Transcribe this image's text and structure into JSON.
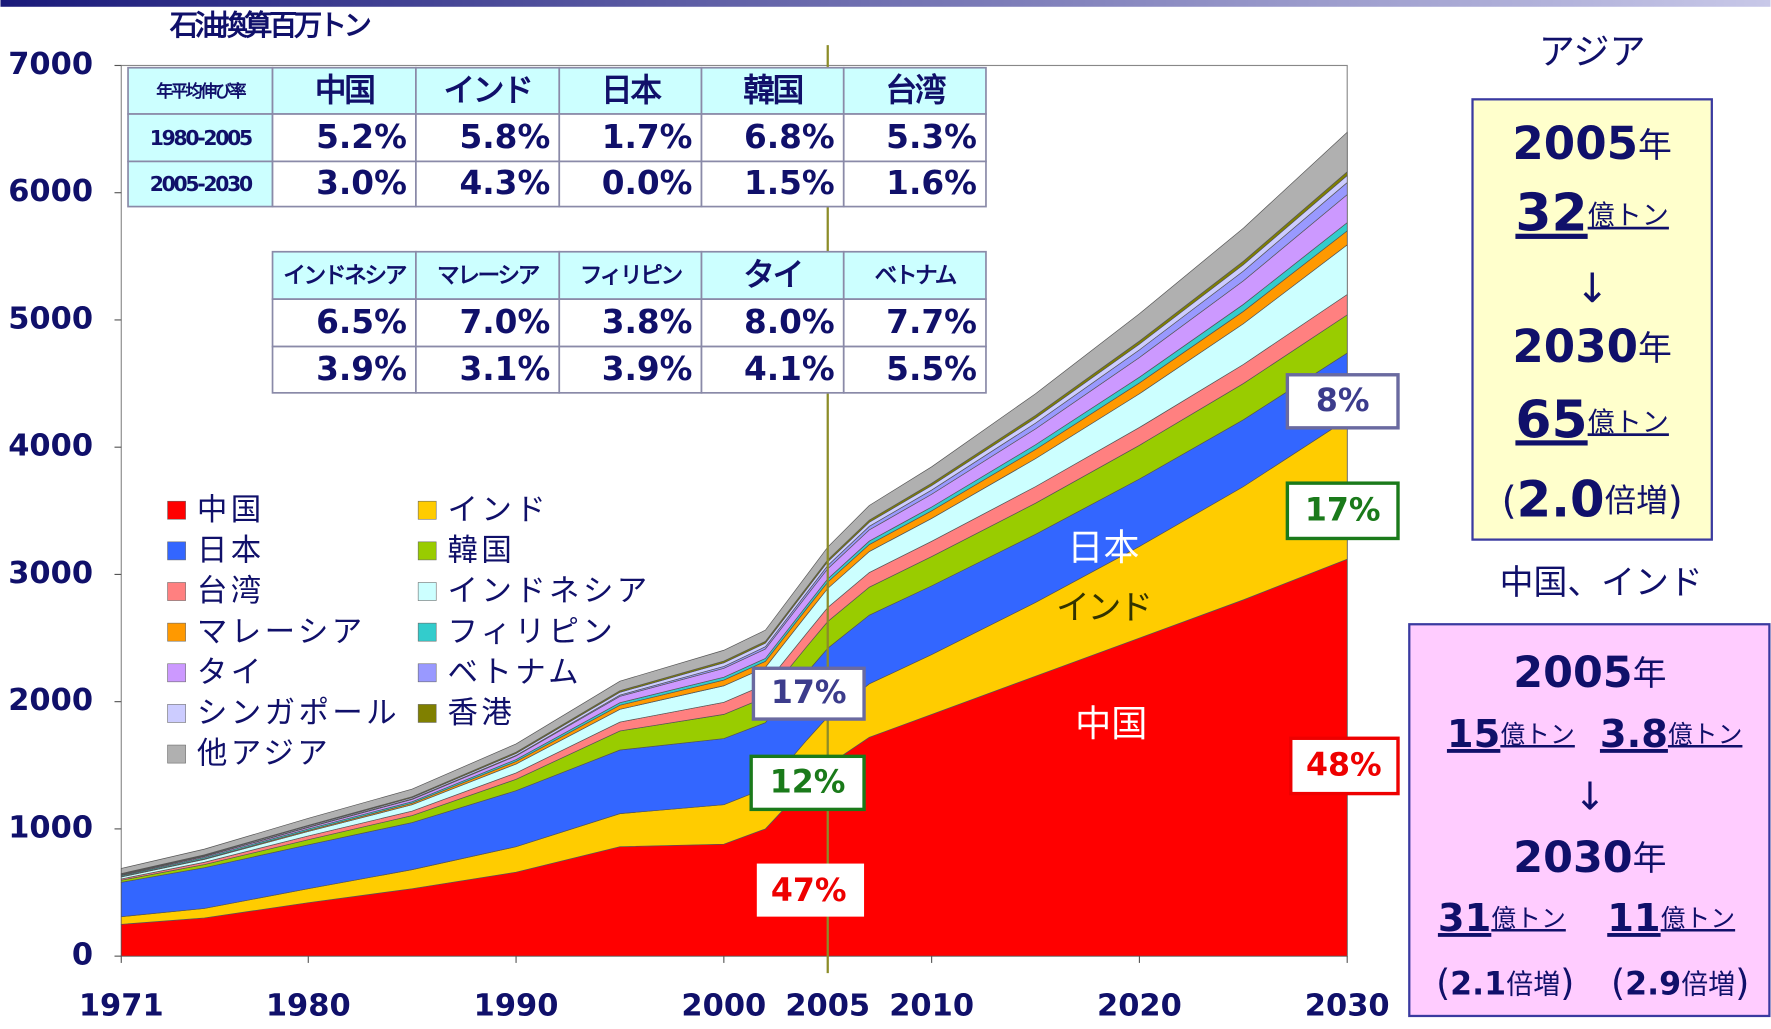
{
  "chart_data": {
    "type": "stacked_area",
    "ylabel": "石油換算百万トン",
    "x": [
      1971,
      1975,
      1980,
      1985,
      1990,
      1995,
      2000,
      2002,
      2004,
      2005,
      2007,
      2010,
      2015,
      2020,
      2025,
      2030
    ],
    "xlim": [
      1971,
      2030
    ],
    "xticks": [
      1971,
      1980,
      1990,
      2000,
      2005,
      2010,
      2020,
      2030
    ],
    "ylim": [
      0,
      7000
    ],
    "yticks": [
      0,
      1000,
      2000,
      3000,
      4000,
      5000,
      6000,
      7000
    ],
    "vline": 2005,
    "series": [
      {
        "name": "中国",
        "color": "#ff0000",
        "values": [
          250,
          300,
          420,
          530,
          660,
          860,
          880,
          1000,
          1350,
          1500,
          1720,
          1900,
          2200,
          2500,
          2800,
          3120
        ]
      },
      {
        "name": "インド",
        "color": "#ffcc00",
        "values": [
          60,
          75,
          110,
          150,
          200,
          260,
          310,
          320,
          350,
          380,
          420,
          470,
          580,
          720,
          890,
          1100
        ]
      },
      {
        "name": "日本",
        "color": "#3366ff",
        "values": [
          270,
          320,
          345,
          370,
          440,
          500,
          520,
          515,
          530,
          540,
          540,
          540,
          535,
          530,
          525,
          520
        ]
      },
      {
        "name": "韓国",
        "color": "#99cc00",
        "values": [
          17,
          25,
          40,
          55,
          90,
          150,
          190,
          200,
          205,
          210,
          220,
          230,
          245,
          265,
          285,
          300
        ]
      },
      {
        "name": "台湾",
        "color": "#ff8080",
        "values": [
          10,
          18,
          30,
          35,
          50,
          70,
          95,
          100,
          105,
          110,
          115,
          120,
          130,
          140,
          150,
          160
        ]
      },
      {
        "name": "インドネシア",
        "color": "#ccffff",
        "values": [
          15,
          22,
          35,
          50,
          70,
          100,
          130,
          135,
          145,
          150,
          165,
          180,
          220,
          265,
          320,
          390
        ]
      },
      {
        "name": "マレーシア",
        "color": "#ff9900",
        "values": [
          3,
          5,
          8,
          12,
          20,
          32,
          45,
          47,
          49,
          50,
          55,
          60,
          72,
          85,
          97,
          110
        ]
      },
      {
        "name": "フィリピン",
        "color": "#33cccc",
        "values": [
          8,
          10,
          12,
          12,
          15,
          20,
          22,
          23,
          24,
          25,
          27,
          30,
          37,
          45,
          55,
          65
        ]
      },
      {
        "name": "タイ",
        "color": "#cc99ff",
        "values": [
          5,
          8,
          12,
          18,
          28,
          50,
          70,
          74,
          78,
          80,
          88,
          100,
          125,
          155,
          185,
          220
        ]
      },
      {
        "name": "ベトナム",
        "color": "#9999ff",
        "values": [
          3,
          3,
          3,
          4,
          5,
          10,
          15,
          18,
          22,
          25,
          28,
          33,
          45,
          60,
          77,
          95
        ]
      },
      {
        "name": "シンガポール",
        "color": "#ccccff",
        "values": [
          5,
          6,
          8,
          10,
          15,
          22,
          28,
          28,
          29,
          30,
          32,
          35,
          40,
          45,
          50,
          55
        ]
      },
      {
        "name": "香港",
        "color": "#808000",
        "values": [
          3,
          4,
          5,
          7,
          10,
          12,
          14,
          14,
          15,
          15,
          17,
          18,
          21,
          24,
          27,
          30
        ]
      },
      {
        "name": "他アジア",
        "color": "#b0b0b0",
        "values": [
          40,
          45,
          55,
          60,
          65,
          75,
          85,
          88,
          95,
          100,
          115,
          130,
          170,
          215,
          260,
          310
        ]
      }
    ],
    "annotations": {
      "japan": "日本",
      "india": "インド",
      "china": "中国",
      "share_2005": [
        "17%",
        "12%",
        "47%"
      ],
      "share_2030": [
        "8%",
        "17%",
        "48%"
      ]
    }
  },
  "growth_tables": {
    "title": "年平均伸び率",
    "table1": {
      "header": [
        "中国",
        "インド",
        "日本",
        "韓国",
        "台湾"
      ],
      "rows": [
        {
          "label": "1980-2005",
          "values": [
            "5.2%",
            "5.8%",
            "1.7%",
            "6.8%",
            "5.3%"
          ]
        },
        {
          "label": "2005-2030",
          "values": [
            "3.0%",
            "4.3%",
            "0.0%",
            "1.5%",
            "1.6%"
          ]
        }
      ]
    },
    "table2": {
      "header": [
        "インドネシア",
        "マレーシア",
        "フィリピン",
        "タイ",
        "ベトナム"
      ],
      "rows": [
        [
          "6.5%",
          "7.0%",
          "3.8%",
          "8.0%",
          "7.7%"
        ],
        [
          "3.9%",
          "3.1%",
          "3.9%",
          "4.1%",
          "5.5%"
        ]
      ]
    }
  },
  "side_panels": {
    "asia": {
      "title": "アジア",
      "year1": "2005",
      "year2": "2030",
      "year_unit": "年",
      "amount1": "32",
      "amount2": "65",
      "amount_unit": "億トン",
      "arrow": "↓",
      "open": "(",
      "ratio": "2.0",
      "ratio_unit": "倍増",
      "close": ")"
    },
    "china_india": {
      "title": "中国、インド",
      "year1": "2005",
      "year2": "2030",
      "year_unit": "年",
      "china1": "15",
      "india1": "3.8",
      "china2": "31",
      "india2": "11",
      "amount_unit": "億トン",
      "arrow": "↓",
      "open": "(",
      "china_ratio": "2.1",
      "india_ratio": "2.9",
      "ratio_unit": "倍増",
      "close": ")"
    }
  }
}
